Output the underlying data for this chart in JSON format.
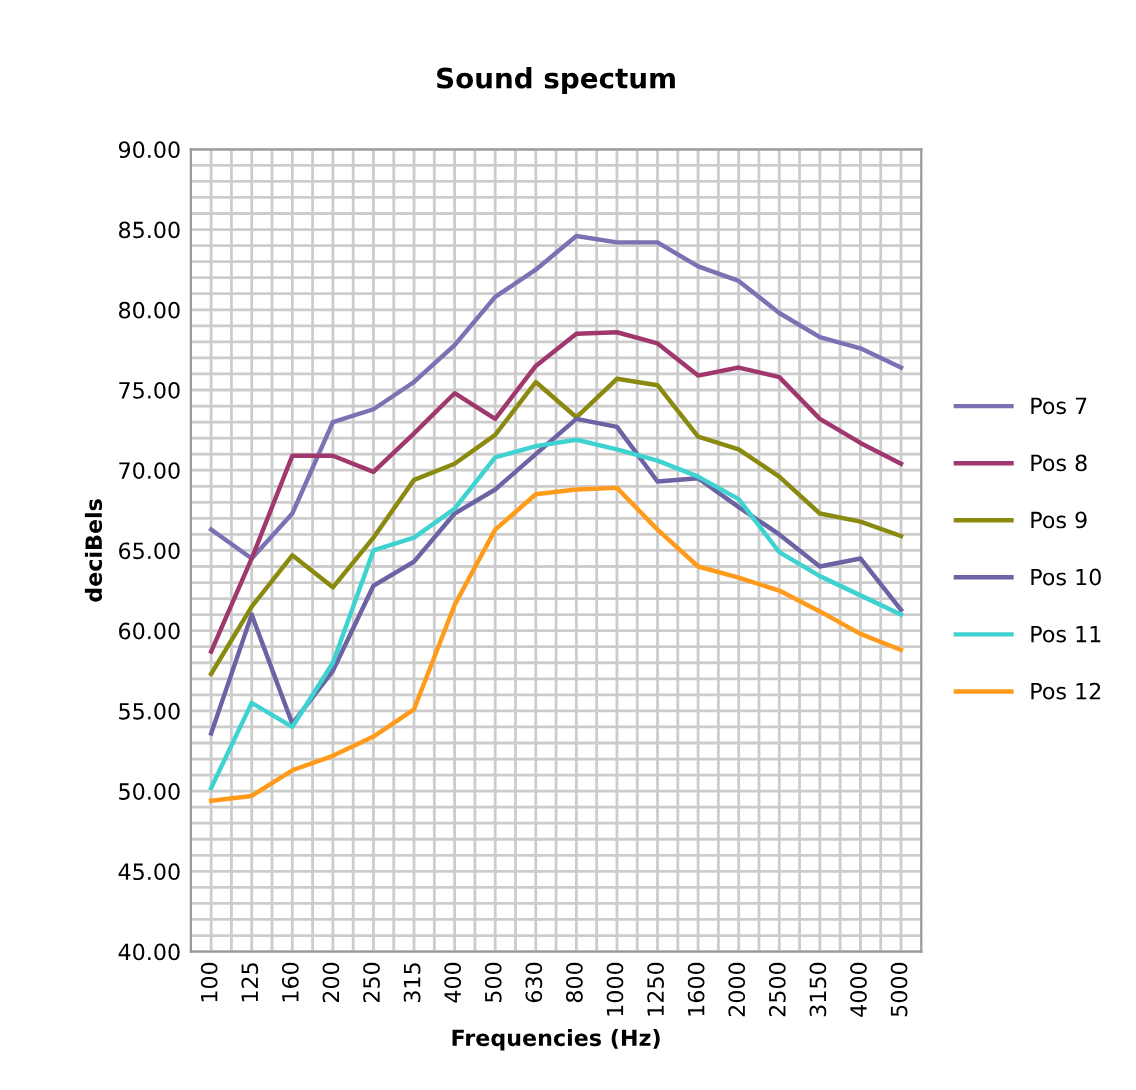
{
  "chart_data": {
    "type": "line",
    "title": "Sound spectum",
    "xlabel": "Frequencies (Hz)",
    "ylabel": "deciBels",
    "categories": [
      "100",
      "125",
      "160",
      "200",
      "250",
      "315",
      "400",
      "500",
      "630",
      "800",
      "1000",
      "1250",
      "1600",
      "2000",
      "2500",
      "3150",
      "4000",
      "5000"
    ],
    "series": [
      {
        "name": "Pos 7",
        "color": "#7b72b4",
        "values": [
          66.3,
          64.5,
          67.3,
          73.0,
          73.8,
          75.5,
          77.8,
          80.8,
          82.5,
          84.6,
          84.2,
          84.2,
          82.7,
          81.8,
          79.8,
          78.3,
          77.6,
          76.4
        ]
      },
      {
        "name": "Pos 8",
        "color": "#a0386d",
        "values": [
          58.7,
          64.5,
          70.9,
          70.9,
          69.9,
          72.3,
          74.8,
          73.2,
          76.5,
          78.5,
          78.6,
          77.9,
          75.9,
          76.4,
          75.8,
          73.2,
          71.7,
          70.4
        ]
      },
      {
        "name": "Pos 9",
        "color": "#8a8a10",
        "values": [
          57.3,
          61.5,
          64.7,
          62.7,
          65.8,
          69.4,
          70.4,
          72.2,
          75.5,
          73.3,
          75.7,
          75.3,
          72.1,
          71.3,
          69.6,
          67.3,
          66.8,
          65.9
        ]
      },
      {
        "name": "Pos 10",
        "color": "#6b63a3",
        "values": [
          53.6,
          61.0,
          54.2,
          57.5,
          62.8,
          64.3,
          67.3,
          68.8,
          71.0,
          73.2,
          72.7,
          69.3,
          69.5,
          67.7,
          66.0,
          64.0,
          64.5,
          61.3
        ]
      },
      {
        "name": "Pos 11",
        "color": "#3ed2d0",
        "values": [
          50.2,
          55.5,
          54.0,
          58.0,
          65.0,
          65.8,
          67.6,
          70.8,
          71.5,
          71.9,
          71.3,
          70.6,
          69.6,
          68.2,
          64.9,
          63.4,
          62.2,
          61.0
        ]
      },
      {
        "name": "Pos 12",
        "color": "#ff9a1a",
        "values": [
          49.4,
          49.7,
          51.3,
          52.2,
          53.4,
          55.1,
          61.6,
          66.3,
          68.5,
          68.8,
          68.9,
          66.3,
          64.0,
          63.3,
          62.5,
          61.2,
          59.8,
          58.8
        ]
      }
    ],
    "ylim": [
      40,
      90
    ],
    "yticks": [
      {
        "value": 40,
        "label": "40.00"
      },
      {
        "value": 45,
        "label": "45.00"
      },
      {
        "value": 50,
        "label": "50.00"
      },
      {
        "value": 55,
        "label": "55.00"
      },
      {
        "value": 60,
        "label": "60.00"
      },
      {
        "value": 65,
        "label": "65.00"
      },
      {
        "value": 70,
        "label": "70.00"
      },
      {
        "value": 75,
        "label": "75.00"
      },
      {
        "value": 80,
        "label": "80.00"
      },
      {
        "value": 85,
        "label": "85.00"
      },
      {
        "value": 90,
        "label": "90.00"
      }
    ],
    "grid": true,
    "legend": "right",
    "marker": "none",
    "line_style": "solid"
  }
}
